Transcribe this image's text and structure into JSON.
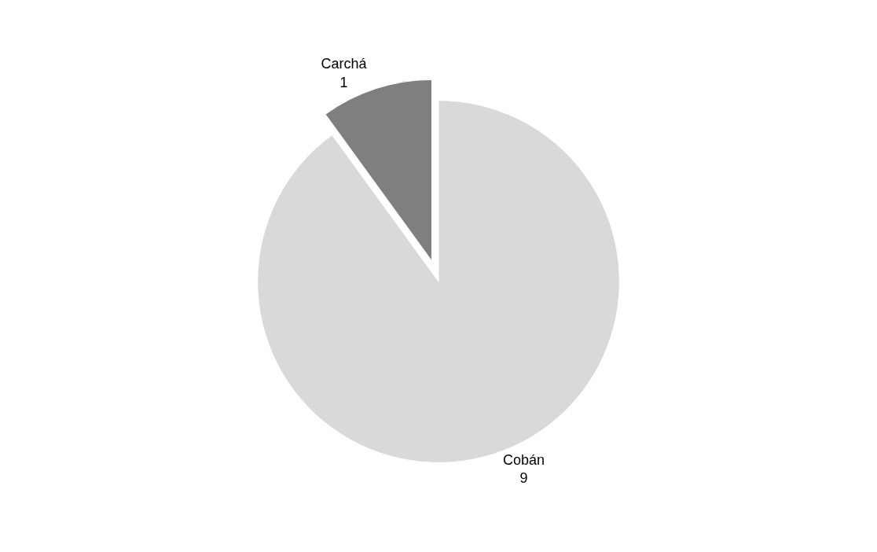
{
  "chart_data": {
    "type": "pie",
    "categories": [
      "Cobán",
      "Carchá"
    ],
    "values": [
      9,
      1
    ],
    "colors": [
      "#d9d9d9",
      "#7f7f7f"
    ],
    "data_labels": true,
    "legend": false
  }
}
